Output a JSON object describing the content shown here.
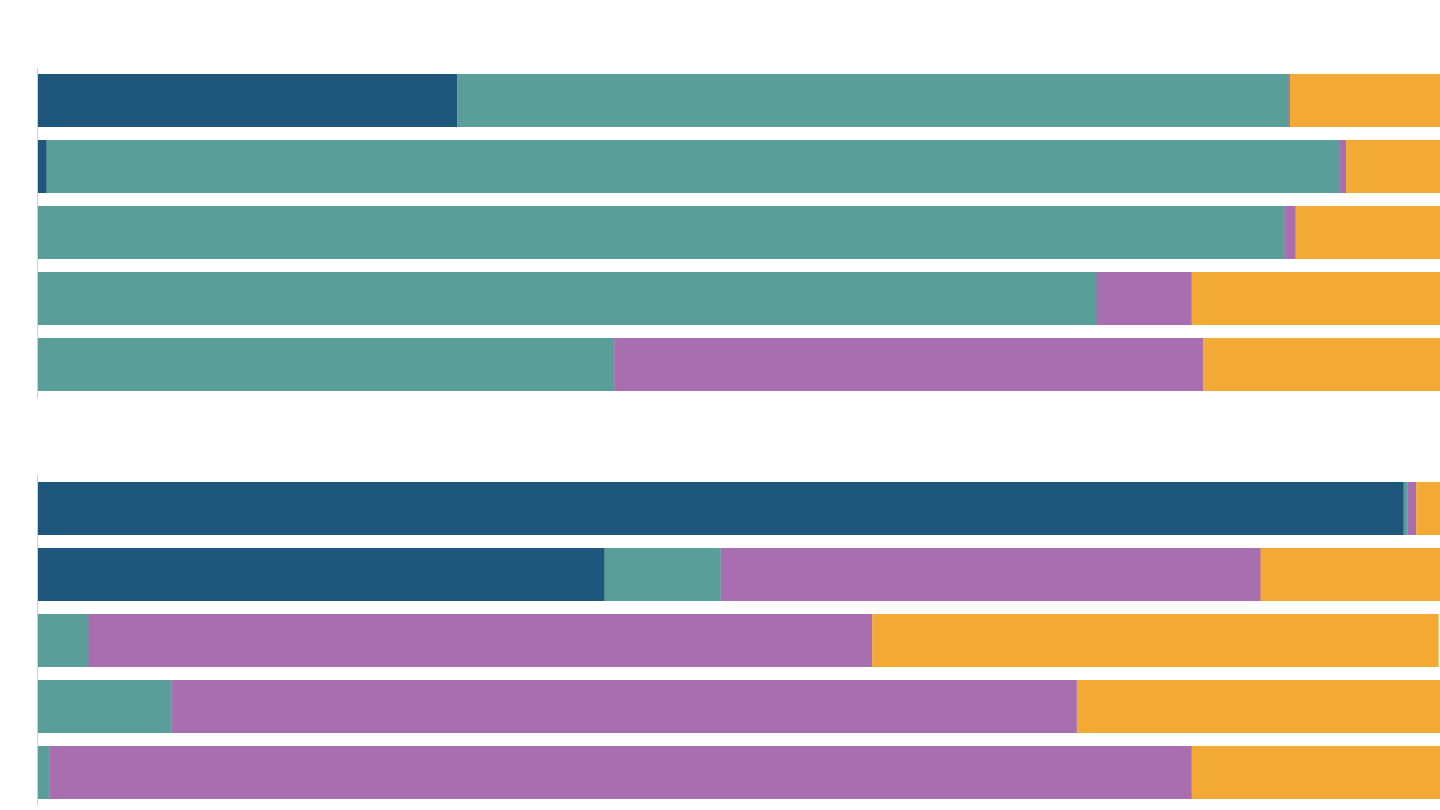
{
  "chart_data": [
    {
      "type": "bar",
      "orientation": "horizontal",
      "stacked": true,
      "xlim": [
        0,
        100
      ],
      "grid": false,
      "colors": [
        "#1f567c",
        "#5a9e9a",
        "#a86eb0",
        "#f2aa35"
      ],
      "rows": [
        [
          29.9,
          59.3,
          0.1,
          10.7
        ],
        [
          0.6,
          92.2,
          0.5,
          6.7
        ],
        [
          0,
          88.9,
          0.8,
          10.3
        ],
        [
          0,
          75.5,
          6.8,
          17.7
        ],
        [
          0,
          41.1,
          42.0,
          16.9
        ]
      ]
    },
    {
      "type": "bar",
      "orientation": "horizontal",
      "stacked": true,
      "xlim": [
        0,
        100
      ],
      "grid": false,
      "colors": [
        "#1f567c",
        "#5a9e9a",
        "#a86eb0",
        "#f2aa35"
      ],
      "rows": [
        [
          97.4,
          0.3,
          0.6,
          1.7
        ],
        [
          40.4,
          8.3,
          38.5,
          12.8
        ],
        [
          0,
          3.6,
          55.9,
          40.4
        ],
        [
          0,
          9.5,
          64.6,
          25.9
        ],
        [
          0,
          0.8,
          81.5,
          17.8
        ]
      ]
    }
  ]
}
